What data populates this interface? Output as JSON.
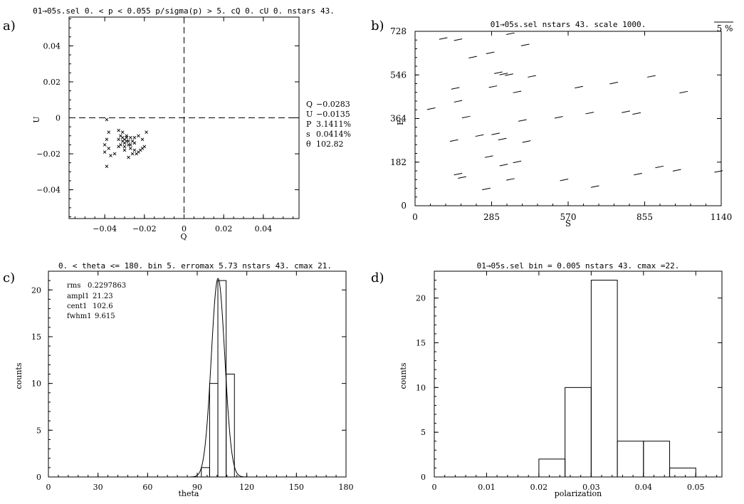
{
  "chart_data": [
    {
      "id": "a",
      "panel_label": "a)",
      "type": "scatter",
      "title": "01→05s.sel 0. < p < 0.055   p/sigma(p) > 5.   cQ 0.   cU 0.   nstars 43.",
      "xlabel": "Q",
      "ylabel": "U",
      "xlim": [
        -0.058,
        0.058
      ],
      "ylim": [
        -0.056,
        0.056
      ],
      "xticks": [
        -0.04,
        -0.02,
        0,
        0.02,
        0.04
      ],
      "xtick_labels": [
        "−0.04",
        "−0.02",
        "0",
        "0.02",
        "0.04"
      ],
      "yticks": [
        -0.04,
        -0.02,
        0,
        0.02,
        0.04
      ],
      "ytick_labels": [
        "−0.04",
        "−0.02",
        "0",
        "0.02",
        "0.04"
      ],
      "marker": "x",
      "points": [
        [
          -0.039,
          -0.001
        ],
        [
          -0.038,
          -0.008
        ],
        [
          -0.039,
          -0.012
        ],
        [
          -0.04,
          -0.015
        ],
        [
          -0.038,
          -0.017
        ],
        [
          -0.04,
          -0.019
        ],
        [
          -0.037,
          -0.021
        ],
        [
          -0.035,
          -0.02
        ],
        [
          -0.039,
          -0.027
        ],
        [
          -0.033,
          -0.007
        ],
        [
          -0.031,
          -0.008
        ],
        [
          -0.032,
          -0.01
        ],
        [
          -0.033,
          -0.012
        ],
        [
          -0.031,
          -0.011
        ],
        [
          -0.03,
          -0.012
        ],
        [
          -0.029,
          -0.011
        ],
        [
          -0.031,
          -0.013
        ],
        [
          -0.032,
          -0.015
        ],
        [
          -0.03,
          -0.014
        ],
        [
          -0.028,
          -0.013
        ],
        [
          -0.027,
          -0.011
        ],
        [
          -0.029,
          -0.013
        ],
        [
          -0.03,
          -0.016
        ],
        [
          -0.028,
          -0.015
        ],
        [
          -0.026,
          -0.013
        ],
        [
          -0.029,
          -0.01
        ],
        [
          -0.027,
          -0.015
        ],
        [
          -0.025,
          -0.014
        ],
        [
          -0.027,
          -0.017
        ],
        [
          -0.025,
          -0.018
        ],
        [
          -0.023,
          -0.019
        ],
        [
          -0.021,
          -0.017
        ],
        [
          -0.024,
          -0.02
        ],
        [
          -0.022,
          -0.018
        ],
        [
          -0.02,
          -0.016
        ],
        [
          -0.021,
          -0.012
        ],
        [
          -0.019,
          -0.008
        ],
        [
          -0.023,
          -0.01
        ],
        [
          -0.025,
          -0.011
        ],
        [
          -0.03,
          -0.018
        ],
        [
          -0.028,
          -0.022
        ],
        [
          -0.026,
          -0.02
        ],
        [
          -0.033,
          -0.016
        ]
      ],
      "stats": [
        {
          "label": "Q",
          "value": "−0.0283"
        },
        {
          "label": "U",
          "value": "−0.0135"
        },
        {
          "label": "P",
          "value": "3.1411%"
        },
        {
          "label": "s",
          "value": "0.0414%"
        },
        {
          "label": "θ",
          "value": "102.82"
        }
      ]
    },
    {
      "id": "b",
      "panel_label": "b)",
      "type": "vector-map",
      "title": "01→05s.sel  nstars 43.   scale 1000.",
      "xlabel": "S",
      "ylabel": "E",
      "xlim": [
        0,
        1140
      ],
      "ylim": [
        0,
        728
      ],
      "xticks": [
        0,
        285,
        570,
        855,
        1140
      ],
      "xtick_labels": [
        "0",
        "285",
        "570",
        "855",
        "1140"
      ],
      "yticks": [
        0,
        182,
        364,
        546,
        728
      ],
      "ytick_labels": [
        "0",
        "182",
        "364",
        "546",
        "728"
      ],
      "scale_bar_label": "5 %",
      "vector_length": 31.4,
      "vector_angle_deg": 102.82,
      "positions": [
        [
          105,
          698
        ],
        [
          160,
          693
        ],
        [
          355,
          718
        ],
        [
          410,
          671
        ],
        [
          280,
          638
        ],
        [
          215,
          620
        ],
        [
          310,
          555
        ],
        [
          330,
          550
        ],
        [
          350,
          547
        ],
        [
          435,
          540
        ],
        [
          290,
          497
        ],
        [
          150,
          490
        ],
        [
          160,
          436
        ],
        [
          380,
          475
        ],
        [
          610,
          495
        ],
        [
          740,
          512
        ],
        [
          880,
          540
        ],
        [
          1000,
          474
        ],
        [
          60,
          405
        ],
        [
          190,
          370
        ],
        [
          400,
          356
        ],
        [
          535,
          369
        ],
        [
          650,
          387
        ],
        [
          785,
          392
        ],
        [
          825,
          385
        ],
        [
          240,
          293
        ],
        [
          300,
          300
        ],
        [
          325,
          278
        ],
        [
          145,
          272
        ],
        [
          415,
          268
        ],
        [
          275,
          205
        ],
        [
          330,
          170
        ],
        [
          380,
          183
        ],
        [
          160,
          132
        ],
        [
          175,
          118
        ],
        [
          265,
          70
        ],
        [
          555,
          108
        ],
        [
          355,
          110
        ],
        [
          670,
          80
        ],
        [
          830,
          132
        ],
        [
          910,
          162
        ],
        [
          975,
          148
        ],
        [
          1130,
          143
        ]
      ]
    },
    {
      "id": "c",
      "panel_label": "c)",
      "type": "bar",
      "title": "0. < theta <= 180. bin 5.   erromax 5.73   nstars 43.   cmax 21.",
      "xlabel": "theta",
      "ylabel": "counts",
      "xlim": [
        0,
        180
      ],
      "ylim": [
        0,
        22
      ],
      "xticks": [
        0,
        30,
        60,
        90,
        120,
        150,
        180
      ],
      "xtick_labels": [
        "0",
        "30",
        "60",
        "90",
        "120",
        "150",
        "180"
      ],
      "yticks": [
        0,
        5,
        10,
        15,
        20
      ],
      "ytick_labels": [
        "0",
        "5",
        "10",
        "15",
        "20"
      ],
      "bin_width": 5,
      "bins": [
        {
          "x0": 92.5,
          "count": 1
        },
        {
          "x0": 97.5,
          "count": 10
        },
        {
          "x0": 102.5,
          "count": 21
        },
        {
          "x0": 107.5,
          "count": 11
        }
      ],
      "gaussian_fit": {
        "amplitude": 21.23,
        "center": 102.6,
        "fwhm": 9.615
      },
      "fit_text": [
        {
          "label": "rms",
          "value": "0.2297863"
        },
        {
          "label": "ampl1",
          "value": "21.23"
        },
        {
          "label": "cent1",
          "value": "102.6"
        },
        {
          "label": "fwhm1",
          "value": "9.615"
        }
      ]
    },
    {
      "id": "d",
      "panel_label": "d)",
      "type": "bar",
      "title": "01→05s.sel bin = 0.005   nstars 43. cmax =22.",
      "xlabel": "polarization",
      "ylabel": "counts",
      "xlim": [
        0,
        0.055
      ],
      "ylim": [
        0,
        23
      ],
      "xticks": [
        0,
        0.01,
        0.02,
        0.03,
        0.04,
        0.05
      ],
      "xtick_labels": [
        "0",
        "0.01",
        "0.02",
        "0.03",
        "0.04",
        "0.05"
      ],
      "yticks": [
        0,
        5,
        10,
        15,
        20
      ],
      "ytick_labels": [
        "0",
        "5",
        "10",
        "15",
        "20"
      ],
      "bin_width": 0.005,
      "bins": [
        {
          "x0": 0.02,
          "count": 2
        },
        {
          "x0": 0.025,
          "count": 10
        },
        {
          "x0": 0.03,
          "count": 22
        },
        {
          "x0": 0.035,
          "count": 4
        },
        {
          "x0": 0.04,
          "count": 4
        },
        {
          "x0": 0.045,
          "count": 1
        }
      ]
    }
  ]
}
